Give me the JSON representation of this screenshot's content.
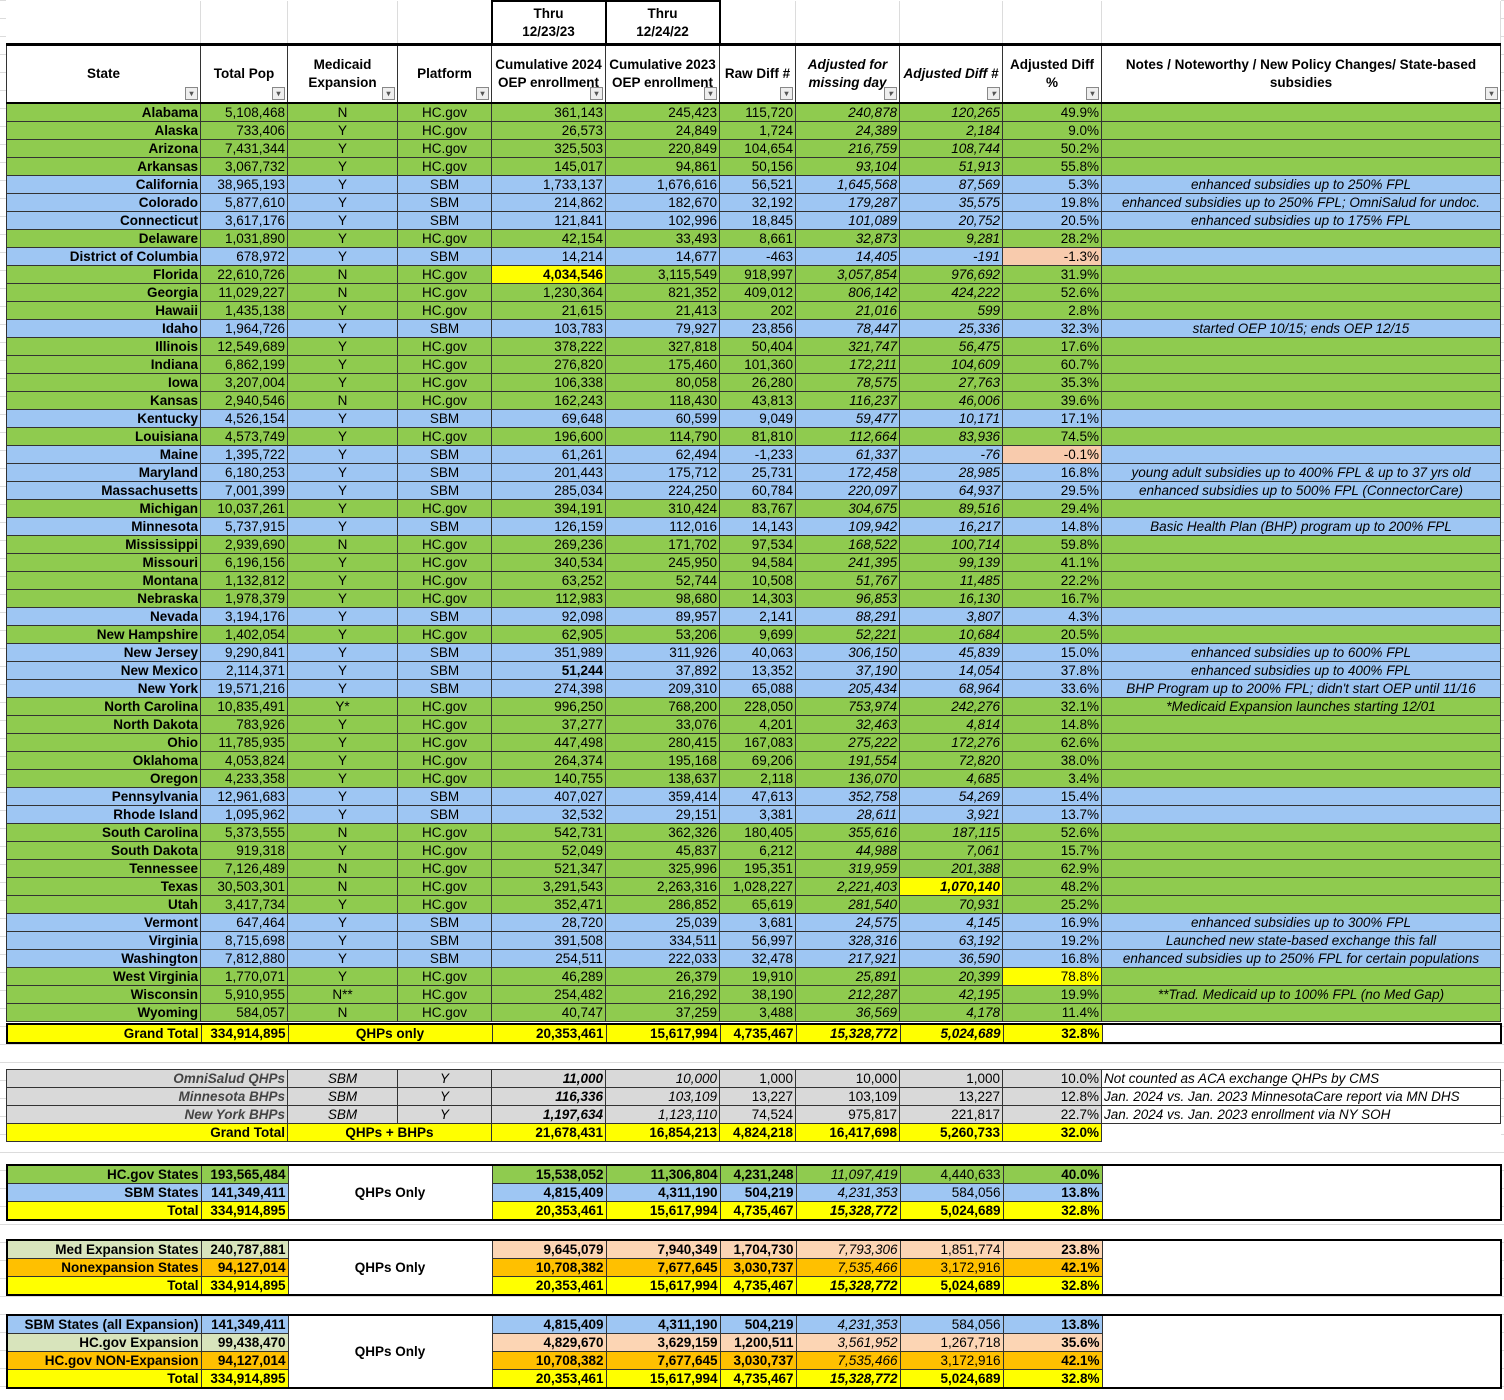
{
  "header": {
    "thru_2024": "Thru\n12/23/23",
    "thru_2023": "Thru\n12/24/22",
    "columns": [
      "State",
      "Total Pop",
      "Medicaid Expansion",
      "Platform",
      "Cumulative 2024 OEP enrollment",
      "Cumulative 2023 OEP enrollment",
      "Raw Diff #",
      "Adjusted for missing day",
      "Adjusted Diff #",
      "Adjusted Diff %",
      "Notes / Noteworthy / New Policy Changes/ State-based subsidies"
    ]
  },
  "colors": {
    "hcgov": "#8fcb4f",
    "sbm": "#9ec6f3",
    "total": "#ffff00",
    "negative": "#f8cbad",
    "highlight": "#ffff00",
    "expansion_label": "#d8e4bc",
    "expansion_values": "#fcd5b4",
    "nonexpansion": "#ffc000",
    "bhp": "#d9d9d9"
  },
  "states": [
    [
      "Alabama",
      "5,108,468",
      "N",
      "HC.gov",
      "361,143",
      "245,423",
      "115,720",
      "240,878",
      "120,265",
      "49.9%",
      ""
    ],
    [
      "Alaska",
      "733,406",
      "Y",
      "HC.gov",
      "26,573",
      "24,849",
      "1,724",
      "24,389",
      "2,184",
      "9.0%",
      ""
    ],
    [
      "Arizona",
      "7,431,344",
      "Y",
      "HC.gov",
      "325,503",
      "220,849",
      "104,654",
      "216,759",
      "108,744",
      "50.2%",
      ""
    ],
    [
      "Arkansas",
      "3,067,732",
      "Y",
      "HC.gov",
      "145,017",
      "94,861",
      "50,156",
      "93,104",
      "51,913",
      "55.8%",
      ""
    ],
    [
      "California",
      "38,965,193",
      "Y",
      "SBM",
      "1,733,137",
      "1,676,616",
      "56,521",
      "1,645,568",
      "87,569",
      "5.3%",
      "enhanced subsidies up to 250% FPL"
    ],
    [
      "Colorado",
      "5,877,610",
      "Y",
      "SBM",
      "214,862",
      "182,670",
      "32,192",
      "179,287",
      "35,575",
      "19.8%",
      "enhanced subsidies up to 250% FPL; OmniSalud for undoc."
    ],
    [
      "Connecticut",
      "3,617,176",
      "Y",
      "SBM",
      "121,841",
      "102,996",
      "18,845",
      "101,089",
      "20,752",
      "20.5%",
      "enhanced subsidies up to 175% FPL"
    ],
    [
      "Delaware",
      "1,031,890",
      "Y",
      "HC.gov",
      "42,154",
      "33,493",
      "8,661",
      "32,873",
      "9,281",
      "28.2%",
      ""
    ],
    [
      "District of Columbia",
      "678,972",
      "Y",
      "SBM",
      "14,214",
      "14,677",
      "-463",
      "14,405",
      "-191",
      "-1.3%",
      ""
    ],
    [
      "Florida",
      "22,610,726",
      "N",
      "HC.gov",
      "4,034,546",
      "3,115,549",
      "918,997",
      "3,057,854",
      "976,692",
      "31.9%",
      ""
    ],
    [
      "Georgia",
      "11,029,227",
      "N",
      "HC.gov",
      "1,230,364",
      "821,352",
      "409,012",
      "806,142",
      "424,222",
      "52.6%",
      ""
    ],
    [
      "Hawaii",
      "1,435,138",
      "Y",
      "HC.gov",
      "21,615",
      "21,413",
      "202",
      "21,016",
      "599",
      "2.8%",
      ""
    ],
    [
      "Idaho",
      "1,964,726",
      "Y",
      "SBM",
      "103,783",
      "79,927",
      "23,856",
      "78,447",
      "25,336",
      "32.3%",
      "started OEP 10/15; ends OEP 12/15"
    ],
    [
      "Illinois",
      "12,549,689",
      "Y",
      "HC.gov",
      "378,222",
      "327,818",
      "50,404",
      "321,747",
      "56,475",
      "17.6%",
      ""
    ],
    [
      "Indiana",
      "6,862,199",
      "Y",
      "HC.gov",
      "276,820",
      "175,460",
      "101,360",
      "172,211",
      "104,609",
      "60.7%",
      ""
    ],
    [
      "Iowa",
      "3,207,004",
      "Y",
      "HC.gov",
      "106,338",
      "80,058",
      "26,280",
      "78,575",
      "27,763",
      "35.3%",
      ""
    ],
    [
      "Kansas",
      "2,940,546",
      "N",
      "HC.gov",
      "162,243",
      "118,430",
      "43,813",
      "116,237",
      "46,006",
      "39.6%",
      ""
    ],
    [
      "Kentucky",
      "4,526,154",
      "Y",
      "SBM",
      "69,648",
      "60,599",
      "9,049",
      "59,477",
      "10,171",
      "17.1%",
      ""
    ],
    [
      "Louisiana",
      "4,573,749",
      "Y",
      "HC.gov",
      "196,600",
      "114,790",
      "81,810",
      "112,664",
      "83,936",
      "74.5%",
      ""
    ],
    [
      "Maine",
      "1,395,722",
      "Y",
      "SBM",
      "61,261",
      "62,494",
      "-1,233",
      "61,337",
      "-76",
      "-0.1%",
      ""
    ],
    [
      "Maryland",
      "6,180,253",
      "Y",
      "SBM",
      "201,443",
      "175,712",
      "25,731",
      "172,458",
      "28,985",
      "16.8%",
      "young adult subsidies up to 400% FPL & up to 37 yrs old"
    ],
    [
      "Massachusetts",
      "7,001,399",
      "Y",
      "SBM",
      "285,034",
      "224,250",
      "60,784",
      "220,097",
      "64,937",
      "29.5%",
      "enhanced subsidies up to 500% FPL (ConnectorCare)"
    ],
    [
      "Michigan",
      "10,037,261",
      "Y",
      "HC.gov",
      "394,191",
      "310,424",
      "83,767",
      "304,675",
      "89,516",
      "29.4%",
      ""
    ],
    [
      "Minnesota",
      "5,737,915",
      "Y",
      "SBM",
      "126,159",
      "112,016",
      "14,143",
      "109,942",
      "16,217",
      "14.8%",
      "Basic Health Plan (BHP) program up to 200% FPL"
    ],
    [
      "Mississippi",
      "2,939,690",
      "N",
      "HC.gov",
      "269,236",
      "171,702",
      "97,534",
      "168,522",
      "100,714",
      "59.8%",
      ""
    ],
    [
      "Missouri",
      "6,196,156",
      "Y",
      "HC.gov",
      "340,534",
      "245,950",
      "94,584",
      "241,395",
      "99,139",
      "41.1%",
      ""
    ],
    [
      "Montana",
      "1,132,812",
      "Y",
      "HC.gov",
      "63,252",
      "52,744",
      "10,508",
      "51,767",
      "11,485",
      "22.2%",
      ""
    ],
    [
      "Nebraska",
      "1,978,379",
      "Y",
      "HC.gov",
      "112,983",
      "98,680",
      "14,303",
      "96,853",
      "16,130",
      "16.7%",
      ""
    ],
    [
      "Nevada",
      "3,194,176",
      "Y",
      "SBM",
      "92,098",
      "89,957",
      "2,141",
      "88,291",
      "3,807",
      "4.3%",
      ""
    ],
    [
      "New Hampshire",
      "1,402,054",
      "Y",
      "HC.gov",
      "62,905",
      "53,206",
      "9,699",
      "52,221",
      "10,684",
      "20.5%",
      ""
    ],
    [
      "New Jersey",
      "9,290,841",
      "Y",
      "SBM",
      "351,989",
      "311,926",
      "40,063",
      "306,150",
      "45,839",
      "15.0%",
      "enhanced subsidies up to 600% FPL"
    ],
    [
      "New Mexico",
      "2,114,371",
      "Y",
      "SBM",
      "51,244",
      "37,892",
      "13,352",
      "37,190",
      "14,054",
      "37.8%",
      "enhanced subsidies up to 400% FPL"
    ],
    [
      "New York",
      "19,571,216",
      "Y",
      "SBM",
      "274,398",
      "209,310",
      "65,088",
      "205,434",
      "68,964",
      "33.6%",
      "BHP Program up to 200% FPL; didn't start OEP until 11/16"
    ],
    [
      "North Carolina",
      "10,835,491",
      "Y*",
      "HC.gov",
      "996,250",
      "768,200",
      "228,050",
      "753,974",
      "242,276",
      "32.1%",
      "*Medicaid Expansion launches starting 12/01"
    ],
    [
      "North Dakota",
      "783,926",
      "Y",
      "HC.gov",
      "37,277",
      "33,076",
      "4,201",
      "32,463",
      "4,814",
      "14.8%",
      ""
    ],
    [
      "Ohio",
      "11,785,935",
      "Y",
      "HC.gov",
      "447,498",
      "280,415",
      "167,083",
      "275,222",
      "172,276",
      "62.6%",
      ""
    ],
    [
      "Oklahoma",
      "4,053,824",
      "Y",
      "HC.gov",
      "264,374",
      "195,168",
      "69,206",
      "191,554",
      "72,820",
      "38.0%",
      ""
    ],
    [
      "Oregon",
      "4,233,358",
      "Y",
      "HC.gov",
      "140,755",
      "138,637",
      "2,118",
      "136,070",
      "4,685",
      "3.4%",
      ""
    ],
    [
      "Pennsylvania",
      "12,961,683",
      "Y",
      "SBM",
      "407,027",
      "359,414",
      "47,613",
      "352,758",
      "54,269",
      "15.4%",
      ""
    ],
    [
      "Rhode Island",
      "1,095,962",
      "Y",
      "SBM",
      "32,532",
      "29,151",
      "3,381",
      "28,611",
      "3,921",
      "13.7%",
      ""
    ],
    [
      "South Carolina",
      "5,373,555",
      "N",
      "HC.gov",
      "542,731",
      "362,326",
      "180,405",
      "355,616",
      "187,115",
      "52.6%",
      ""
    ],
    [
      "South Dakota",
      "919,318",
      "Y",
      "HC.gov",
      "52,049",
      "45,837",
      "6,212",
      "44,988",
      "7,061",
      "15.7%",
      ""
    ],
    [
      "Tennessee",
      "7,126,489",
      "N",
      "HC.gov",
      "521,347",
      "325,996",
      "195,351",
      "319,959",
      "201,388",
      "62.9%",
      ""
    ],
    [
      "Texas",
      "30,503,301",
      "N",
      "HC.gov",
      "3,291,543",
      "2,263,316",
      "1,028,227",
      "2,221,403",
      "1,070,140",
      "48.2%",
      ""
    ],
    [
      "Utah",
      "3,417,734",
      "Y",
      "HC.gov",
      "352,471",
      "286,852",
      "65,619",
      "281,540",
      "70,931",
      "25.2%",
      ""
    ],
    [
      "Vermont",
      "647,464",
      "Y",
      "SBM",
      "28,720",
      "25,039",
      "3,681",
      "24,575",
      "4,145",
      "16.9%",
      "enhanced subsidies up to 300% FPL"
    ],
    [
      "Virginia",
      "8,715,698",
      "Y",
      "SBM",
      "391,508",
      "334,511",
      "56,997",
      "328,316",
      "63,192",
      "19.2%",
      "Launched new state-based exchange this fall"
    ],
    [
      "Washington",
      "7,812,880",
      "Y",
      "SBM",
      "254,511",
      "222,033",
      "32,478",
      "217,921",
      "36,590",
      "16.8%",
      "enhanced subsidies up to 250% FPL for certain populations"
    ],
    [
      "West Virginia",
      "1,770,071",
      "Y",
      "HC.gov",
      "46,289",
      "26,379",
      "19,910",
      "25,891",
      "20,399",
      "78.8%",
      ""
    ],
    [
      "Wisconsin",
      "5,910,955",
      "N**",
      "HC.gov",
      "254,482",
      "216,292",
      "38,190",
      "212,287",
      "42,195",
      "19.9%",
      "**Trad. Medicaid up to 100% FPL (no Med Gap)"
    ],
    [
      "Wyoming",
      "584,057",
      "N",
      "HC.gov",
      "40,747",
      "37,259",
      "3,488",
      "36,569",
      "4,178",
      "11.4%",
      ""
    ]
  ],
  "highlights": [
    {
      "state": "Florida",
      "column": 4,
      "color": "#ffff00",
      "bold": true
    },
    {
      "state": "New Mexico",
      "column": 4,
      "color": "",
      "bold": true
    },
    {
      "state": "Texas",
      "column": 8,
      "color": "#ffff00",
      "bold": true
    },
    {
      "state": "West Virginia",
      "column": 9,
      "color": "#ffff00",
      "bold": false
    },
    {
      "state": "District of Columbia",
      "column": 9,
      "color": "#f8cbad",
      "bold": false
    },
    {
      "state": "Maine",
      "column": 9,
      "color": "#f8cbad",
      "bold": false
    }
  ],
  "grand_total_qhp": {
    "label": "Grand Total",
    "pop": "334,914,895",
    "desc": "QHPs only",
    "values": [
      "20,353,461",
      "15,617,994",
      "4,735,467",
      "15,328,772",
      "5,024,689",
      "32.8%"
    ]
  },
  "bhp_rows": [
    {
      "label": "OmniSalud QHPs",
      "platform": "SBM",
      "exp": "Y",
      "values": [
        "11,000",
        "10,000",
        "1,000",
        "10,000",
        "1,000",
        "10.0%"
      ],
      "note": "Not counted as ACA exchange QHPs by CMS"
    },
    {
      "label": "Minnesota BHPs",
      "platform": "SBM",
      "exp": "Y",
      "values": [
        "116,336",
        "103,109",
        "13,227",
        "103,109",
        "13,227",
        "12.8%"
      ],
      "note": "Jan. 2024 vs. Jan. 2023 MinnesotaCare report via MN DHS"
    },
    {
      "label": "New York BHPs",
      "platform": "SBM",
      "exp": "Y",
      "values": [
        "1,197,634",
        "1,123,110",
        "74,524",
        "975,817",
        "221,817",
        "22.7%"
      ],
      "note": "Jan. 2024 vs. Jan. 2023 enrollment via NY SOH"
    }
  ],
  "grand_total_bhp": {
    "label": "Grand Total",
    "desc": "QHPs + BHPs",
    "values": [
      "21,678,431",
      "16,854,213",
      "4,824,218",
      "16,417,698",
      "5,260,733",
      "32.0%"
    ]
  },
  "breakdowns": [
    {
      "desc": "QHPs Only",
      "rows": [
        {
          "label": "HC.gov States",
          "pop": "193,565,484",
          "values": [
            "15,538,052",
            "11,306,804",
            "4,231,248",
            "11,097,419",
            "4,440,633",
            "40.0%"
          ],
          "label_fill": "#8fcb4f",
          "value_fill": "#8fcb4f"
        },
        {
          "label": "SBM States",
          "pop": "141,349,411",
          "values": [
            "4,815,409",
            "4,311,190",
            "504,219",
            "4,231,353",
            "584,056",
            "13.8%"
          ],
          "label_fill": "#9ec6f3",
          "value_fill": "#9ec6f3"
        },
        {
          "label": "Total",
          "pop": "334,914,895",
          "values": [
            "20,353,461",
            "15,617,994",
            "4,735,467",
            "15,328,772",
            "5,024,689",
            "32.8%"
          ],
          "label_fill": "#ffff00",
          "value_fill": "#ffff00"
        }
      ]
    },
    {
      "desc": "QHPs Only",
      "rows": [
        {
          "label": "Med Expansion States",
          "pop": "240,787,881",
          "values": [
            "9,645,079",
            "7,940,349",
            "1,704,730",
            "7,793,306",
            "1,851,774",
            "23.8%"
          ],
          "label_fill": "#d8e4bc",
          "value_fill": "#fcd5b4"
        },
        {
          "label": "Nonexpansion States",
          "pop": "94,127,014",
          "values": [
            "10,708,382",
            "7,677,645",
            "3,030,737",
            "7,535,466",
            "3,172,916",
            "42.1%"
          ],
          "label_fill": "#ffc000",
          "value_fill": "#ffc000"
        },
        {
          "label": "Total",
          "pop": "334,914,895",
          "values": [
            "20,353,461",
            "15,617,994",
            "4,735,467",
            "15,328,772",
            "5,024,689",
            "32.8%"
          ],
          "label_fill": "#ffff00",
          "value_fill": "#ffff00"
        }
      ]
    },
    {
      "desc": "QHPs Only",
      "rows": [
        {
          "label": "SBM States (all Expansion)",
          "pop": "141,349,411",
          "values": [
            "4,815,409",
            "4,311,190",
            "504,219",
            "4,231,353",
            "584,056",
            "13.8%"
          ],
          "label_fill": "#9ec6f3",
          "value_fill": "#9ec6f3"
        },
        {
          "label": "HC.gov Expansion",
          "pop": "99,438,470",
          "values": [
            "4,829,670",
            "3,629,159",
            "1,200,511",
            "3,561,952",
            "1,267,718",
            "35.6%"
          ],
          "label_fill": "#d8e4bc",
          "value_fill": "#fcd5b4"
        },
        {
          "label": "HC.gov NON-Expansion",
          "pop": "94,127,014",
          "values": [
            "10,708,382",
            "7,677,645",
            "3,030,737",
            "7,535,466",
            "3,172,916",
            "42.1%"
          ],
          "label_fill": "#ffc000",
          "value_fill": "#ffc000"
        },
        {
          "label": "Total",
          "pop": "334,914,895",
          "values": [
            "20,353,461",
            "15,617,994",
            "4,735,467",
            "15,328,772",
            "5,024,689",
            "32.8%"
          ],
          "label_fill": "#ffff00",
          "value_fill": "#ffff00"
        }
      ]
    }
  ]
}
